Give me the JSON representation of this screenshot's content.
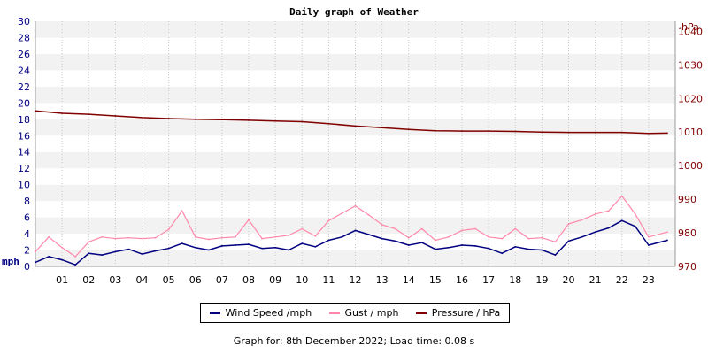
{
  "chart_data": {
    "type": "line",
    "title": "Daily graph of Weather",
    "x_ticks": [
      "01",
      "02",
      "03",
      "04",
      "05",
      "06",
      "07",
      "08",
      "09",
      "10",
      "11",
      "12",
      "13",
      "14",
      "15",
      "16",
      "17",
      "18",
      "19",
      "20",
      "21",
      "22",
      "23"
    ],
    "xlim": [
      0,
      24
    ],
    "y_left": {
      "unit_label": "mph",
      "ticks": [
        "0",
        "2",
        "4",
        "6",
        "8",
        "10",
        "12",
        "14",
        "16",
        "18",
        "20",
        "22",
        "24",
        "26",
        "28",
        "30"
      ],
      "ylim": [
        0,
        30
      ],
      "tick_color": "#000080"
    },
    "y_right": {
      "unit_label": "hPa",
      "ticks": [
        "970",
        "980",
        "990",
        "1000",
        "1010",
        "1020",
        "1030",
        "1040"
      ],
      "ylim": [
        970,
        1043
      ],
      "tick_color": "#800000"
    },
    "grid": true,
    "grid_style": "alternating horizontal bands with dashed vertical lines",
    "series": [
      {
        "name": "Wind Speed /mph",
        "axis": "left",
        "color": "#000080",
        "x": [
          0,
          0.5,
          1,
          1.5,
          2,
          2.5,
          3,
          3.5,
          4,
          4.5,
          5,
          5.5,
          6,
          6.5,
          7,
          7.5,
          8,
          8.5,
          9,
          9.5,
          10,
          10.5,
          11,
          11.5,
          12,
          12.5,
          13,
          13.5,
          14,
          14.5,
          15,
          15.5,
          16,
          16.5,
          17,
          17.5,
          18,
          18.5,
          19,
          19.5,
          20,
          20.5,
          21,
          21.5,
          22,
          22.5,
          23,
          23.7
        ],
        "values": [
          0.5,
          1.2,
          0.8,
          0.2,
          1.6,
          1.4,
          1.8,
          2.1,
          1.5,
          1.9,
          2.2,
          2.8,
          2.3,
          2.0,
          2.5,
          2.6,
          2.7,
          2.2,
          2.3,
          2.0,
          2.8,
          2.4,
          3.2,
          3.6,
          4.4,
          3.9,
          3.4,
          3.1,
          2.6,
          2.9,
          2.1,
          2.3,
          2.6,
          2.5,
          2.2,
          1.6,
          2.4,
          2.1,
          2.0,
          1.4,
          3.1,
          3.6,
          4.2,
          4.7,
          5.6,
          4.9,
          2.6,
          3.2
        ]
      },
      {
        "name": "Gust / mph",
        "axis": "left",
        "color": "#ff88aa",
        "x": [
          0,
          0.5,
          1,
          1.5,
          2,
          2.5,
          3,
          3.5,
          4,
          4.5,
          5,
          5.5,
          6,
          6.5,
          7,
          7.5,
          8,
          8.5,
          9,
          9.5,
          10,
          10.5,
          11,
          11.5,
          12,
          12.5,
          13,
          13.5,
          14,
          14.5,
          15,
          15.5,
          16,
          16.5,
          17,
          17.5,
          18,
          18.5,
          19,
          19.5,
          20,
          20.5,
          21,
          21.5,
          22,
          22.5,
          23,
          23.7
        ],
        "values": [
          1.8,
          3.6,
          2.3,
          1.2,
          3.0,
          3.6,
          3.4,
          3.5,
          3.4,
          3.5,
          4.5,
          6.8,
          3.6,
          3.3,
          3.5,
          3.6,
          5.7,
          3.4,
          3.6,
          3.8,
          4.6,
          3.7,
          5.6,
          6.5,
          7.4,
          6.3,
          5.1,
          4.6,
          3.5,
          4.6,
          3.2,
          3.6,
          4.4,
          4.6,
          3.6,
          3.4,
          4.6,
          3.4,
          3.5,
          3.0,
          5.2,
          5.7,
          6.4,
          6.8,
          8.6,
          6.4,
          3.6,
          4.2
        ]
      },
      {
        "name": "Pressure / hPa",
        "axis": "right",
        "color": "#800000",
        "x": [
          0,
          1,
          2,
          3,
          4,
          5,
          6,
          7,
          8,
          9,
          10,
          11,
          12,
          13,
          14,
          15,
          16,
          17,
          18,
          19,
          20,
          21,
          22,
          23,
          23.7
        ],
        "values": [
          1016.3,
          1015.6,
          1015.3,
          1014.8,
          1014.3,
          1014.0,
          1013.8,
          1013.7,
          1013.5,
          1013.3,
          1013.1,
          1012.5,
          1011.8,
          1011.3,
          1010.8,
          1010.4,
          1010.3,
          1010.3,
          1010.2,
          1010.0,
          1009.9,
          1009.9,
          1009.9,
          1009.6,
          1009.7
        ]
      }
    ]
  },
  "legend": {
    "wind_label": "Wind Speed /mph",
    "gust_label": "Gust / mph",
    "pressure_label": "Pressure / hPa"
  },
  "footer": {
    "text": "Graph for: 8th December 2022; Load time: 0.08 s"
  }
}
